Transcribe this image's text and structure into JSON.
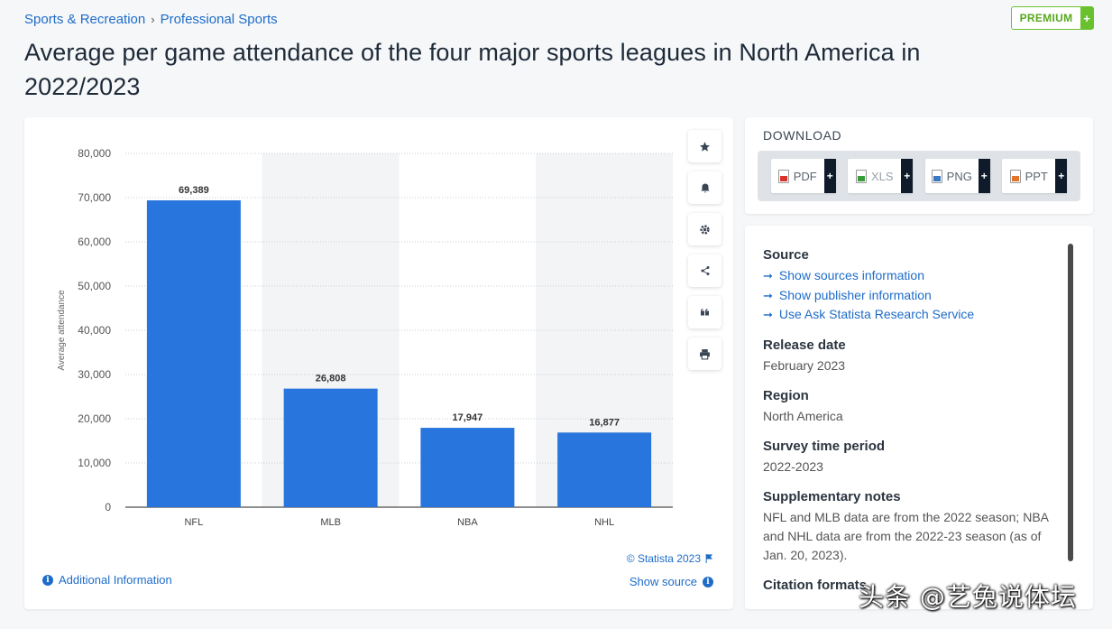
{
  "breadcrumb": {
    "items": [
      "Sports & Recreation",
      "Professional Sports"
    ],
    "separator": "›"
  },
  "premium": {
    "label": "PREMIUM",
    "plus": "+"
  },
  "title": "Average per game attendance of the four major sports leagues in North America in 2022/2023",
  "chart_data": {
    "type": "bar",
    "categories": [
      "NFL",
      "MLB",
      "NBA",
      "NHL"
    ],
    "values": [
      69389,
      26808,
      17947,
      16877
    ],
    "value_labels": [
      "69,389",
      "26,808",
      "17,947",
      "16,877"
    ],
    "ylabel": "Average attendance",
    "xlabel": "",
    "ylim": [
      0,
      80000
    ],
    "yticks": [
      0,
      10000,
      20000,
      30000,
      40000,
      50000,
      60000,
      70000,
      80000
    ],
    "ytick_labels": [
      "0",
      "10,000",
      "20,000",
      "30,000",
      "40,000",
      "50,000",
      "60,000",
      "70,000",
      "80,000"
    ],
    "bar_color": "#2876dd",
    "grid": true
  },
  "tools": [
    "star-icon",
    "bell-icon",
    "gear-icon",
    "share-icon",
    "quote-icon",
    "print-icon"
  ],
  "chart_footer": {
    "copyright": "© Statista 2023",
    "show_source": "Show source",
    "additional_info": "Additional Information"
  },
  "download": {
    "title": "DOWNLOAD",
    "buttons": [
      {
        "label": "PDF",
        "color": "#d9342b"
      },
      {
        "label": "XLS",
        "color": "#3a9b3a"
      },
      {
        "label": "PNG",
        "color": "#3a78c2"
      },
      {
        "label": "PPT",
        "color": "#e0752b"
      }
    ],
    "plus": "+"
  },
  "info": {
    "source_heading": "Source",
    "source_links": [
      "Show sources information",
      "Show publisher information",
      "Use Ask Statista Research Service"
    ],
    "release_heading": "Release date",
    "release_value": "February 2023",
    "region_heading": "Region",
    "region_value": "North America",
    "survey_heading": "Survey time period",
    "survey_value": "2022-2023",
    "notes_heading": "Supplementary notes",
    "notes_value": "NFL and MLB data are from the 2022 season; NBA and NHL data are from the 2022-23 season (as of Jan. 20, 2023).",
    "citation_heading": "Citation formats"
  },
  "watermark": "头条 @艺兔说体坛"
}
